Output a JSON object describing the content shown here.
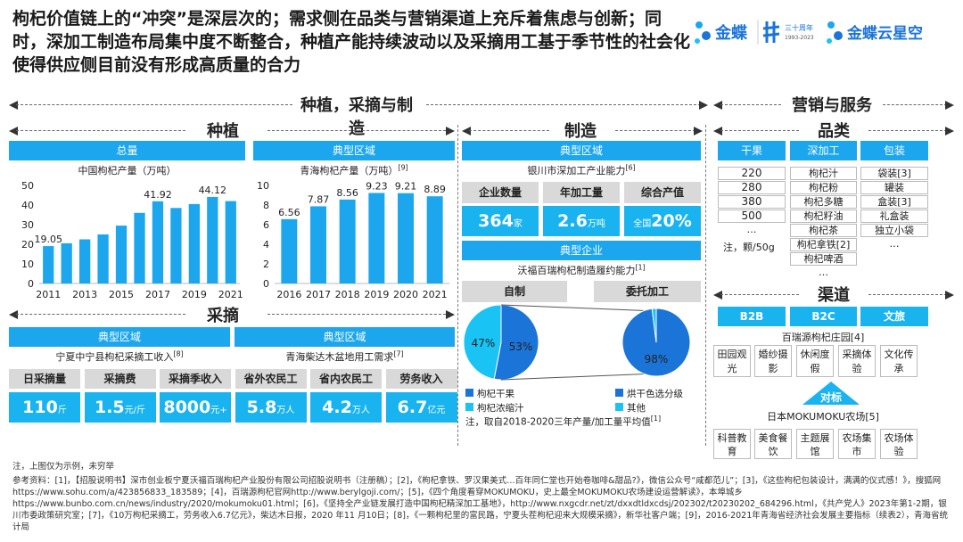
{
  "headline": "枸杞价值链上的“冲突”是深层次的；需求侧在品类与营销渠道上充斥着焦虑与创新；同时，深加工制造布局集中度不断整合，种植产能持续波动以及采摘用工基于季节性的社会化使得供应侧目前没有形成高质量的合力",
  "logos": {
    "kingdee": "金蝶",
    "anniv": "三十周年",
    "anniv_years": "1993-2023",
    "cloud": "金蝶云星空"
  },
  "sections": {
    "left_main": "种植，采摘与制造",
    "right_main": "营销与服务",
    "planting": "种植",
    "picking": "采摘",
    "manufacturing": "制造",
    "category": "品类",
    "channel": "渠道"
  },
  "planting": {
    "total_label": "总量",
    "total_chart_title": "中国枸杞产量（万吨）",
    "region_label": "典型区域",
    "region_chart_title": "青海枸杞产量（万吨）",
    "region_chart_ref": "[9]"
  },
  "chart_data": [
    {
      "type": "bar",
      "title": "中国枸杞产量（万吨）",
      "categories": [
        "2011",
        "2012",
        "2013",
        "2014",
        "2015",
        "2016",
        "2017",
        "2018",
        "2019",
        "2020",
        "2021"
      ],
      "x_tick_labels": [
        "2011",
        "2013",
        "2015",
        "2017",
        "2019",
        "2021"
      ],
      "values": [
        19.05,
        20.5,
        22.5,
        25.0,
        29.5,
        36.0,
        41.92,
        38.5,
        40.5,
        44.12,
        42.0
      ],
      "data_labels": {
        "0": "19.05",
        "6": "41.92",
        "9": "44.12"
      },
      "ylim": [
        0,
        50
      ],
      "yticks": [
        0,
        10,
        20,
        30,
        40,
        50
      ],
      "grid": false
    },
    {
      "type": "bar",
      "title": "青海枸杞产量（万吨）",
      "categories": [
        "2016",
        "2017",
        "2018",
        "2019",
        "2020",
        "2021"
      ],
      "values": [
        6.56,
        7.87,
        8.56,
        9.23,
        9.21,
        8.89
      ],
      "data_labels": {
        "0": "6.56",
        "1": "7.87",
        "2": "8.56",
        "3": "9.23",
        "4": "9.21",
        "5": "8.89"
      },
      "ylim": [
        0,
        10
      ],
      "yticks": [
        0,
        2,
        4,
        6,
        8,
        10
      ],
      "grid": false
    },
    {
      "type": "pie",
      "title": "沃福百瑞枸杞制造履约能力",
      "slices": [
        {
          "label": "枸杞干果",
          "value": 53
        },
        {
          "label": "枸杞浓缩汁",
          "value": 47
        }
      ],
      "color_keys": [
        "#1b74d8",
        "#19c3f3"
      ]
    },
    {
      "type": "pie",
      "slices": [
        {
          "label": "烘干色选分级",
          "value": 98
        },
        {
          "label": "其他",
          "value": 2
        }
      ],
      "color_keys": [
        "#1b74d8",
        "#19c3f3"
      ]
    }
  ],
  "picking": {
    "region_label_1": "典型区域",
    "region_label_2": "典型区域",
    "sub_1": "宁夏中宁县枸杞采摘工收入",
    "sub_1_ref": "[8]",
    "sub_2": "青海柴达木盆地用工需求",
    "sub_2_ref": "[7]",
    "metrics": [
      {
        "label": "日采摘量",
        "value": "110",
        "unit": "斤"
      },
      {
        "label": "采摘费",
        "value": "1.5",
        "unit": "元/斤"
      },
      {
        "label": "采摘季收入",
        "value": "8000",
        "unit": "元+"
      },
      {
        "label": "省外农民工",
        "value": "5.8",
        "unit": "万人"
      },
      {
        "label": "省内农民工",
        "value": "4.2",
        "unit": "万人"
      },
      {
        "label": "劳务收入",
        "value": "6.7",
        "unit": "亿元"
      }
    ]
  },
  "manufacturing": {
    "region_label": "典型区域",
    "region_sub": "银川市深加工产业能力",
    "region_sub_ref": "[6]",
    "metrics": [
      {
        "label": "企业数量",
        "value": "364",
        "unit": "家",
        "prefix": ""
      },
      {
        "label": "年加工量",
        "value": "2.6",
        "unit": "万吨",
        "prefix": ""
      },
      {
        "label": "综合产值",
        "value": "20%",
        "unit": "",
        "prefix": "全国"
      }
    ],
    "enterprise_label": "典型企业",
    "enterprise_sub": "沃福百瑞枸杞制造履约能力",
    "enterprise_sub_ref": "[1]",
    "self_label": "自制",
    "outsource_label": "委托加工",
    "pie1_labels": [
      "47%",
      "53%"
    ],
    "pie2_label": "98%",
    "legend": [
      "枸杞干果",
      "烘干色选分级",
      "枸杞浓缩汁",
      "其他"
    ],
    "note": "注，取自2018-2020三年产量/加工量平均值",
    "note_ref": "[1]"
  },
  "category": {
    "headers": [
      "干果",
      "深加工",
      "包装"
    ],
    "dried": [
      "220",
      "280",
      "380",
      "500",
      "…"
    ],
    "dried_note": "注，颗/50g",
    "processed": [
      "枸杞汁",
      "枸杞粉",
      "枸杞多糖",
      "枸杞籽油",
      "枸杞茶",
      "枸杞拿铁",
      "枸杞啤酒",
      "…"
    ],
    "processed_refs": [
      "",
      "",
      "",
      "",
      "",
      "[2]",
      "",
      ""
    ],
    "packaging": [
      "袋装",
      "罐装",
      "盒装",
      "礼盒装",
      "独立小袋",
      "…"
    ],
    "packaging_refs": [
      "[3]",
      "",
      "[3]",
      "",
      "",
      ""
    ]
  },
  "channel": {
    "buttons": [
      "B2B",
      "B2C",
      "文旅"
    ],
    "manor": "百瑞源枸杞庄园",
    "manor_ref": "[4]",
    "manor_items": [
      "田园观光",
      "婚纱摄影",
      "休闲度假",
      "采摘体验",
      "文化传承"
    ],
    "benchmark": "对标",
    "farm": "日本MOKUMOKU农场",
    "farm_ref": "[5]",
    "farm_items": [
      "科普教育",
      "美食餐饮",
      "主题展馆",
      "农场集市",
      "农场体验"
    ]
  },
  "footer": {
    "note": "注，上图仅为示例，未穷举",
    "refs": "参考资料：[1]，【招股说明书】深市创业板宁夏沃福百瑞枸杞产业股份有限公司招股说明书（注册稿）；[2]，《枸杞拿铁、罗汉果美式…百年同仁堂也开始卷咖啡&甜品?》，微信公众号“咸都范儿”；[3]，《这些枸杞包装设计，满满的仪式感！》，搜狐网https://www.sohu.com/a/423856833_183589；[4]，百瑞源枸杞官网http://www.berylgoji.com/；[5]，《四个角度看穿MOKUMOKU，史上最全MOKUMOKU农场建设运营解读》，本埠城乡https://www.bunbo.com.cn/news/industry/2020/mokumoku01.html；[6]，《坚持全产业链发展打造中国枸杞精深加工基地》，http://www.nxgcdr.net/zt/dxxdtldxcdsj/202302/t20230202_684296.html，《共产党人》2023年第1-2期，银川市委政策研究室；[7]，《10万枸杞采摘工，劳务收入6.7亿元》，柴达木日报，2020 年11 月10日；[8]，《一颗枸杞里的富民路，宁夏头茬枸杞迎来大规模采摘》，新华社客户端；[9]，2016-2021年青海省经济社会发展主要指标（续表2），青海省统计局"
  }
}
